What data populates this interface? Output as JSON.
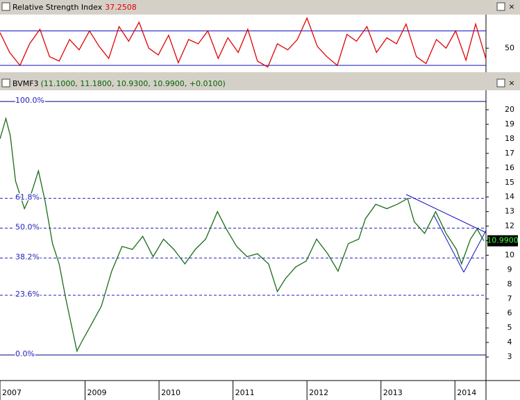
{
  "chart_data": [
    {
      "type": "line",
      "title": "Relative Strength Index",
      "current_value": 37.2508,
      "color": "#e00000",
      "levels": [
        70,
        30
      ],
      "ylim": [
        22,
        89
      ],
      "yticks": [
        50
      ],
      "xlim": [
        2007.85,
        2014.42
      ],
      "x": [
        2007.85,
        2007.98,
        2008.12,
        2008.25,
        2008.39,
        2008.52,
        2008.65,
        2008.79,
        2008.92,
        2009.06,
        2009.19,
        2009.32,
        2009.46,
        2009.59,
        2009.73,
        2009.86,
        2009.99,
        2010.13,
        2010.26,
        2010.4,
        2010.53,
        2010.66,
        2010.8,
        2010.93,
        2011.07,
        2011.2,
        2011.33,
        2011.47,
        2011.6,
        2011.74,
        2011.87,
        2012.0,
        2012.14,
        2012.27,
        2012.41,
        2012.54,
        2012.67,
        2012.81,
        2012.94,
        2013.08,
        2013.21,
        2013.34,
        2013.48,
        2013.61,
        2013.75,
        2013.88,
        2014.01,
        2014.15,
        2014.28,
        2014.42
      ],
      "values": [
        68,
        45,
        30,
        55,
        72,
        40,
        35,
        60,
        48,
        70,
        52,
        38,
        75,
        58,
        80,
        50,
        42,
        65,
        33,
        60,
        55,
        70,
        38,
        62,
        45,
        72,
        35,
        28,
        55,
        48,
        60,
        85,
        52,
        40,
        30,
        66,
        58,
        75,
        45,
        62,
        55,
        78,
        40,
        32,
        60,
        50,
        70,
        36,
        78,
        37.2508
      ]
    },
    {
      "type": "line",
      "title": "BVMF3",
      "quote": "(11.1000, 11.1800, 10.9300, 10.9900, +0.0100)",
      "last_price_label": "10.9900",
      "color": "#1a6b1a",
      "ylim": [
        1.38,
        21.34
      ],
      "yticks": [
        3,
        4,
        5,
        6,
        7,
        8,
        9,
        10,
        11,
        12,
        13,
        14,
        15,
        16,
        17,
        18,
        19,
        20
      ],
      "xlim": [
        2007.85,
        2014.42
      ],
      "xticks": [
        {
          "value": 2007.85,
          "label": "2007"
        },
        2009,
        2010,
        2011,
        2012,
        2013,
        2014
      ],
      "fib_levels": [
        {
          "value": 20.57,
          "label": "100.0%"
        },
        {
          "value": 13.91,
          "label": "61.8%"
        },
        {
          "value": 11.86,
          "label": "50.0%"
        },
        {
          "value": 9.8,
          "label": "38.2%"
        },
        {
          "value": 7.25,
          "label": "23.6%"
        },
        {
          "value": 3.14,
          "label": "0.0%"
        }
      ],
      "x": [
        2007.85,
        2007.93,
        2007.99,
        2008.06,
        2008.18,
        2008.27,
        2008.37,
        2008.46,
        2008.56,
        2008.65,
        2008.74,
        2008.84,
        2008.89,
        2008.96,
        2009.07,
        2009.22,
        2009.36,
        2009.5,
        2009.64,
        2009.78,
        2009.92,
        2010.06,
        2010.2,
        2010.35,
        2010.49,
        2010.63,
        2010.79,
        2010.91,
        2011.05,
        2011.19,
        2011.33,
        2011.48,
        2011.6,
        2011.71,
        2011.85,
        2011.99,
        2012.13,
        2012.28,
        2012.42,
        2012.56,
        2012.7,
        2012.79,
        2012.93,
        2013.08,
        2013.22,
        2013.36,
        2013.45,
        2013.59,
        2013.74,
        2013.88,
        2014.02,
        2014.09,
        2014.21,
        2014.3,
        2014.39
      ],
      "values": [
        18.0,
        19.4,
        18.2,
        15.1,
        13.2,
        14.2,
        15.8,
        13.7,
        10.8,
        9.4,
        7.0,
        4.6,
        3.4,
        4.1,
        5.1,
        6.5,
        8.9,
        10.6,
        10.4,
        11.3,
        9.9,
        11.1,
        10.4,
        9.4,
        10.4,
        11.1,
        13.0,
        11.8,
        10.6,
        9.9,
        10.1,
        9.4,
        7.5,
        8.4,
        9.2,
        9.6,
        11.1,
        10.1,
        8.9,
        10.8,
        11.1,
        12.5,
        13.5,
        13.2,
        13.5,
        13.9,
        12.3,
        11.5,
        13.0,
        11.5,
        10.4,
        9.4,
        11.1,
        11.8,
        10.99
      ]
    }
  ]
}
